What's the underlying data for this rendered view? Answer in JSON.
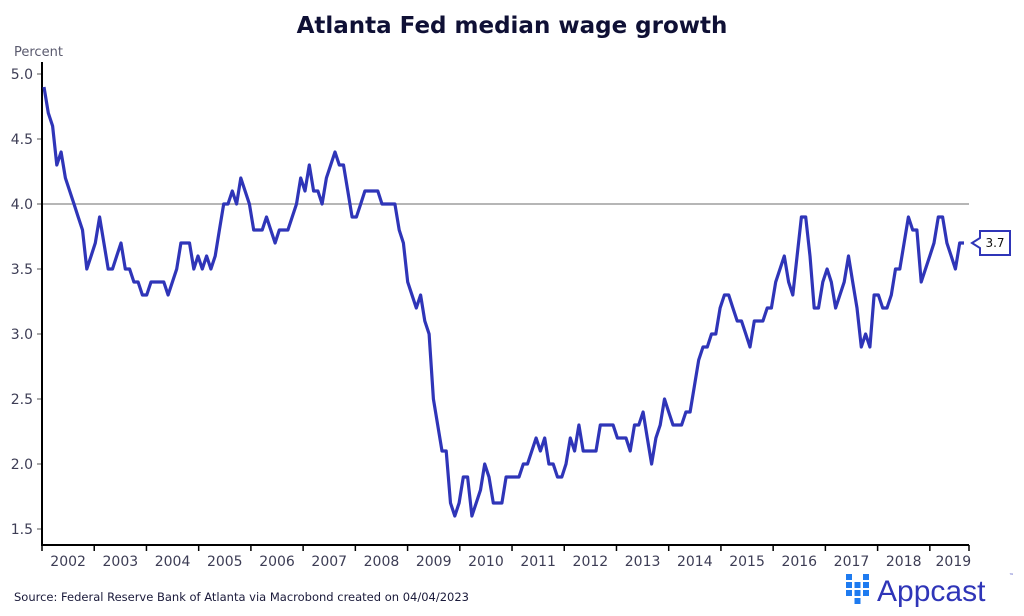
{
  "chart_data": {
    "type": "line",
    "title": "Atlanta Fed median wage growth",
    "ylabel": "Percent",
    "xlabel": "",
    "ylim": [
      1.5,
      5.0
    ],
    "xlim": [
      2002.0,
      2019.75
    ],
    "yticks": [
      1.5,
      2.0,
      2.5,
      3.0,
      3.5,
      4.0,
      4.5,
      5.0
    ],
    "ytick_labels": [
      "1.5",
      "2.0",
      "2.5",
      "3.0",
      "3.5",
      "4.0",
      "4.5",
      "5.0"
    ],
    "xtick_labels": [
      "2002",
      "2003",
      "2004",
      "2005",
      "2006",
      "2007",
      "2008",
      "2009",
      "2010",
      "2011",
      "2012",
      "2013",
      "2014",
      "2015",
      "2016",
      "2017",
      "2018",
      "2019"
    ],
    "reference_line": 4.0,
    "grid": false,
    "legend": "none",
    "end_label": "3.7",
    "series": [
      {
        "name": "Atlanta Fed median wage growth",
        "color": "#2f35b8",
        "start": "2002-01",
        "frequency": "monthly",
        "values": [
          4.9,
          4.7,
          4.6,
          4.3,
          4.4,
          4.2,
          4.1,
          4.0,
          3.9,
          3.8,
          3.5,
          3.6,
          3.7,
          3.9,
          3.7,
          3.5,
          3.5,
          3.6,
          3.7,
          3.5,
          3.5,
          3.4,
          3.4,
          3.3,
          3.3,
          3.4,
          3.4,
          3.4,
          3.4,
          3.3,
          3.4,
          3.5,
          3.7,
          3.7,
          3.7,
          3.5,
          3.6,
          3.5,
          3.6,
          3.5,
          3.6,
          3.8,
          4.0,
          4.0,
          4.1,
          4.0,
          4.2,
          4.1,
          4.0,
          3.8,
          3.8,
          3.8,
          3.9,
          3.8,
          3.7,
          3.8,
          3.8,
          3.8,
          3.9,
          4.0,
          4.2,
          4.1,
          4.3,
          4.1,
          4.1,
          4.0,
          4.2,
          4.3,
          4.4,
          4.3,
          4.3,
          4.1,
          3.9,
          3.9,
          4.0,
          4.1,
          4.1,
          4.1,
          4.1,
          4.0,
          4.0,
          4.0,
          4.0,
          3.8,
          3.7,
          3.4,
          3.3,
          3.2,
          3.3,
          3.1,
          3.0,
          2.5,
          2.3,
          2.1,
          2.1,
          1.7,
          1.6,
          1.7,
          1.9,
          1.9,
          1.6,
          1.7,
          1.8,
          2.0,
          1.9,
          1.7,
          1.7,
          1.7,
          1.9,
          1.9,
          1.9,
          1.9,
          2.0,
          2.0,
          2.1,
          2.2,
          2.1,
          2.2,
          2.0,
          2.0,
          1.9,
          1.9,
          2.0,
          2.2,
          2.1,
          2.3,
          2.1,
          2.1,
          2.1,
          2.1,
          2.3,
          2.3,
          2.3,
          2.3,
          2.2,
          2.2,
          2.2,
          2.1,
          2.3,
          2.3,
          2.4,
          2.2,
          2.0,
          2.2,
          2.3,
          2.5,
          2.4,
          2.3,
          2.3,
          2.3,
          2.4,
          2.4,
          2.6,
          2.8,
          2.9,
          2.9,
          3.0,
          3.0,
          3.2,
          3.3,
          3.3,
          3.2,
          3.1,
          3.1,
          3.0,
          2.9,
          3.1,
          3.1,
          3.1,
          3.2,
          3.2,
          3.4,
          3.5,
          3.6,
          3.4,
          3.3,
          3.6,
          3.9,
          3.9,
          3.6,
          3.2,
          3.2,
          3.4,
          3.5,
          3.4,
          3.2,
          3.3,
          3.4,
          3.6,
          3.4,
          3.2,
          2.9,
          3.0,
          2.9,
          3.3,
          3.3,
          3.2,
          3.2,
          3.3,
          3.5,
          3.5,
          3.7,
          3.9,
          3.8,
          3.8,
          3.4,
          3.5,
          3.6,
          3.7,
          3.9,
          3.9,
          3.7,
          3.6,
          3.5,
          3.7,
          3.7
        ]
      }
    ]
  },
  "footer": {
    "source": "Source: Federal Reserve Bank of Atlanta via Macrobond created on 04/04/2023",
    "brand": "Appcast",
    "brand_tm": "™",
    "brand_color": "#2f35b8",
    "brand_icon_color": "#1e7bf0"
  }
}
